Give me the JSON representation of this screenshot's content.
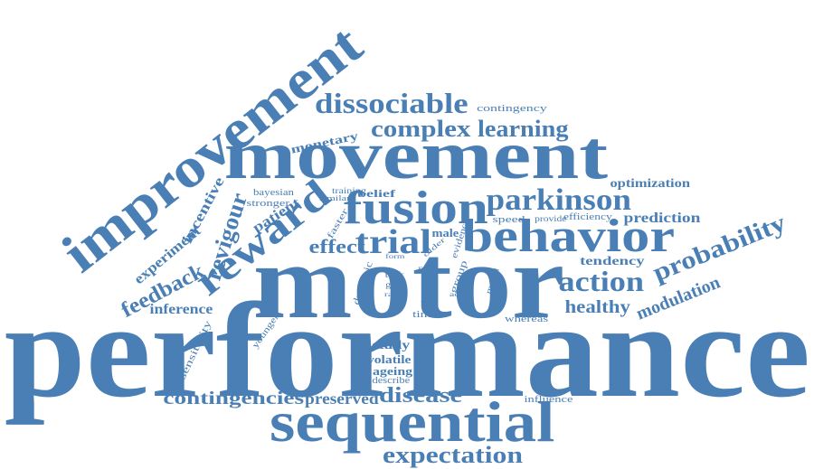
{
  "color": "#4a7fb5",
  "words": [
    "performance",
    "motor",
    "movement",
    "improvement",
    "sequential",
    "behavior",
    "fusion",
    "reward",
    "dissociable",
    "complex",
    "learning",
    "parkinson",
    "trial",
    "action",
    "probability",
    "feedback",
    "revigour",
    "expectation",
    "contingencies",
    "preserved",
    "disease",
    "effect",
    "healthy",
    "modulation",
    "inference",
    "experiment",
    "incentive",
    "patient",
    "prediction",
    "tendency",
    "optimization",
    "contingency",
    "monetary",
    "bayesian",
    "stronger",
    "training",
    "similar",
    "belief",
    "faster",
    "male",
    "evidence",
    "speed",
    "provide",
    "efficiency",
    "older",
    "form",
    "pro",
    "group",
    "model",
    "task",
    "gain",
    "rapid",
    "dynamic",
    "blood",
    "adult",
    "time",
    "whereas",
    "younger",
    "sensitivity",
    "study",
    "volatile",
    "ageing",
    "describe",
    "influence"
  ]
}
